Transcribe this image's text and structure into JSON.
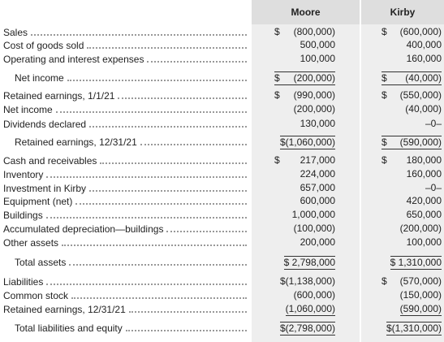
{
  "table": {
    "columns": [
      "Moore",
      "Kirby"
    ],
    "rows": [
      {
        "label": "Sales",
        "cells": [
          {
            "sign": "$",
            "amount": "(800,000)"
          },
          {
            "sign": "$",
            "amount": "(600,000)"
          }
        ]
      },
      {
        "label": "Cost of goods sold",
        "cells": [
          {
            "amount": "500,000"
          },
          {
            "amount": "400,000"
          }
        ]
      },
      {
        "label": "Operating and interest expenses",
        "cells": [
          {
            "amount": "100,000"
          },
          {
            "amount": "160,000"
          }
        ]
      },
      {
        "label": "Net income",
        "indent": true,
        "cells": [
          {
            "sign": "$",
            "amount": "(200,000)"
          },
          {
            "sign": "$",
            "amount": "(40,000)"
          }
        ]
      },
      {
        "label": "Retained earnings, 1/1/21",
        "cells": [
          {
            "sign": "$",
            "amount": "(990,000)"
          },
          {
            "sign": "$",
            "amount": "(550,000)"
          }
        ]
      },
      {
        "label": "Net income",
        "cells": [
          {
            "amount": "(200,000)"
          },
          {
            "amount": "(40,000)"
          }
        ]
      },
      {
        "label": "Dividends declared",
        "cells": [
          {
            "amount": "130,000"
          },
          {
            "amount": "–0–"
          }
        ]
      },
      {
        "label": "Retained earnings, 12/31/21",
        "indent": true,
        "cells": [
          {
            "amount": "$(1,060,000)"
          },
          {
            "sign": "$",
            "amount": "(590,000)"
          }
        ]
      },
      {
        "label": "Cash and receivables",
        "cells": [
          {
            "sign": "$",
            "amount": "217,000"
          },
          {
            "sign": "$",
            "amount": "180,000"
          }
        ]
      },
      {
        "label": "Inventory",
        "cells": [
          {
            "amount": "224,000"
          },
          {
            "amount": "160,000"
          }
        ]
      },
      {
        "label": "Investment in Kirby",
        "cells": [
          {
            "amount": "657,000"
          },
          {
            "amount": "–0–"
          }
        ]
      },
      {
        "label": "Equipment (net)",
        "cells": [
          {
            "amount": "600,000"
          },
          {
            "amount": "420,000"
          }
        ]
      },
      {
        "label": "Buildings",
        "cells": [
          {
            "amount": "1,000,000"
          },
          {
            "amount": "650,000"
          }
        ]
      },
      {
        "label": "Accumulated depreciation—buildings",
        "cells": [
          {
            "amount": "(100,000)"
          },
          {
            "amount": "(200,000)"
          }
        ]
      },
      {
        "label": "Other assets",
        "cells": [
          {
            "amount": "200,000"
          },
          {
            "amount": "100,000"
          }
        ]
      },
      {
        "label": "Total assets",
        "indent": true,
        "cells": [
          {
            "amount": "$ 2,798,000"
          },
          {
            "amount": "$ 1,310,000"
          }
        ]
      },
      {
        "label": "Liabilities",
        "cells": [
          {
            "amount": "$(1,138,000)"
          },
          {
            "sign": "$",
            "amount": "(570,000)"
          }
        ]
      },
      {
        "label": "Common stock",
        "cells": [
          {
            "amount": "(600,000)"
          },
          {
            "amount": "(150,000)"
          }
        ]
      },
      {
        "label": "Retained earnings, 12/31/21",
        "cells": [
          {
            "amount": "(1,060,000)"
          },
          {
            "amount": "(590,000)"
          }
        ]
      },
      {
        "label": "Total liabilities and equity",
        "indent": true,
        "cells": [
          {
            "amount": "$(2,798,000)"
          },
          {
            "amount": "$(1,310,000)"
          }
        ]
      }
    ]
  }
}
